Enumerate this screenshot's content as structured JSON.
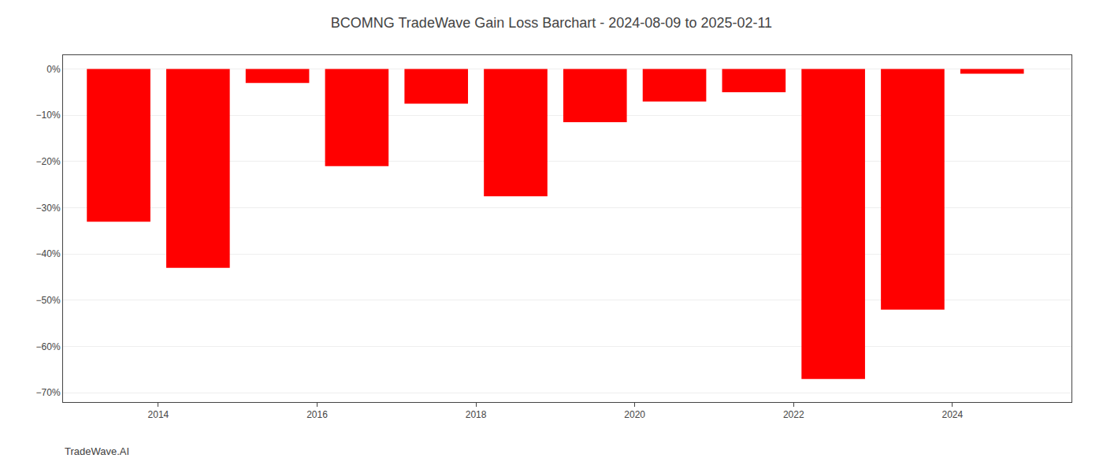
{
  "chart_data": {
    "type": "bar",
    "title": "BCOMNG TradeWave Gain Loss Barchart - 2024-08-09 to 2025-02-11",
    "annotations": [
      "TradeWave.AI"
    ],
    "x": [
      2013.5,
      2014.5,
      2015.5,
      2016.5,
      2017.5,
      2018.5,
      2019.5,
      2020.5,
      2021.5,
      2022.5,
      2023.5,
      2024.5
    ],
    "values": [
      -33.0,
      -43.0,
      -3.0,
      -21.0,
      -7.5,
      -27.5,
      -11.5,
      -7.0,
      -5.0,
      -67.0,
      -52.0,
      -1.0
    ],
    "color": "#ff0000",
    "xlim": [
      2012.8,
      2025.5
    ],
    "xticks": [
      2014,
      2016,
      2018,
      2020,
      2022,
      2024
    ],
    "ylim": [
      -72,
      3
    ],
    "yticks": [
      {
        "value": 0,
        "label": "0%"
      },
      {
        "value": -10,
        "label": "−10%"
      },
      {
        "value": -20,
        "label": "−20%"
      },
      {
        "value": -30,
        "label": "−30%"
      },
      {
        "value": -40,
        "label": "−40%"
      },
      {
        "value": -50,
        "label": "−50%"
      },
      {
        "value": -60,
        "label": "−60%"
      },
      {
        "value": -70,
        "label": "−70%"
      }
    ],
    "grid": true
  }
}
